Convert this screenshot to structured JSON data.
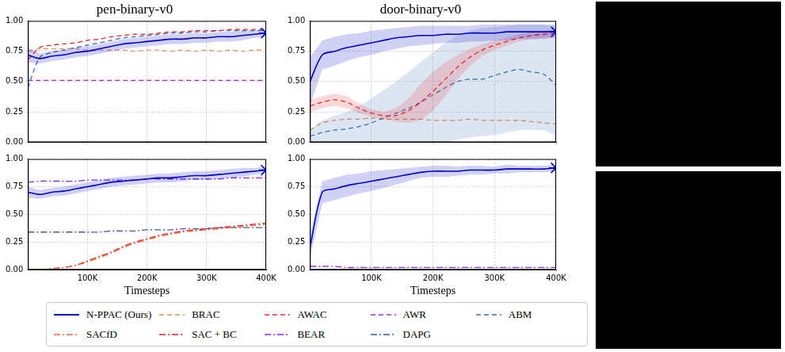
{
  "chart_data": [
    {
      "type": "line",
      "title": "pen-binary-v0",
      "grid": true,
      "legend": "bottom",
      "tick_labels": "y",
      "x": [
        0,
        20000,
        40000,
        60000,
        80000,
        100000,
        120000,
        140000,
        160000,
        180000,
        200000,
        220000,
        240000,
        260000,
        280000,
        300000,
        320000,
        340000,
        360000,
        380000,
        400000
      ],
      "xlim": [
        0,
        400000
      ],
      "xticks": [
        {
          "value": 100000,
          "label": "100K"
        },
        {
          "value": 200000,
          "label": "200K"
        },
        {
          "value": 300000,
          "label": "300K"
        },
        {
          "value": 400000,
          "label": "400K"
        }
      ],
      "ylim": [
        0,
        1
      ],
      "yticks": [
        {
          "value": 0,
          "label": "0.00"
        },
        {
          "value": 0.25,
          "label": "0.25"
        },
        {
          "value": 0.5,
          "label": "0.50"
        },
        {
          "value": 0.75,
          "label": "0.75"
        },
        {
          "value": 1,
          "label": "1.00"
        }
      ],
      "series": [
        {
          "name": "N-PPAC (Ours)",
          "color": "#0000cc",
          "line_style": "solid",
          "marker": "star",
          "values": [
            0.72,
            0.69,
            0.71,
            0.72,
            0.74,
            0.75,
            0.77,
            0.79,
            0.81,
            0.82,
            0.83,
            0.84,
            0.85,
            0.85,
            0.86,
            0.86,
            0.87,
            0.87,
            0.88,
            0.89,
            0.9
          ],
          "lower": [
            0.66,
            0.65,
            0.67,
            0.68,
            0.7,
            0.71,
            0.73,
            0.75,
            0.77,
            0.78,
            0.79,
            0.8,
            0.81,
            0.81,
            0.82,
            0.82,
            0.83,
            0.83,
            0.84,
            0.86,
            0.87
          ],
          "upper": [
            0.78,
            0.73,
            0.75,
            0.76,
            0.78,
            0.79,
            0.81,
            0.83,
            0.85,
            0.86,
            0.87,
            0.88,
            0.89,
            0.89,
            0.9,
            0.9,
            0.91,
            0.91,
            0.92,
            0.92,
            0.93
          ]
        },
        {
          "name": "BRAC",
          "color": "#e8915a",
          "line_style": "dashed",
          "values": [
            0.75,
            0.77,
            0.77,
            0.77,
            0.77,
            0.76,
            0.76,
            0.76,
            0.76,
            0.75,
            0.76,
            0.76,
            0.75,
            0.76,
            0.75,
            0.76,
            0.75,
            0.76,
            0.75,
            0.76,
            0.76
          ]
        },
        {
          "name": "AWAC",
          "color": "#e8282a",
          "line_style": "dashed",
          "values": [
            0.68,
            0.78,
            0.8,
            0.81,
            0.82,
            0.84,
            0.85,
            0.87,
            0.88,
            0.89,
            0.89,
            0.9,
            0.91,
            0.91,
            0.92,
            0.92,
            0.92,
            0.93,
            0.93,
            0.93,
            0.93
          ]
        },
        {
          "name": "AWR",
          "color": "#9b30e0",
          "line_style": "dashed",
          "values": [
            0.51,
            0.51,
            0.51,
            0.51,
            0.51,
            0.51,
            0.51,
            0.51,
            0.51,
            0.51,
            0.51,
            0.51,
            0.51,
            0.51,
            0.51,
            0.51,
            0.51,
            0.51,
            0.51,
            0.51,
            0.51
          ]
        },
        {
          "name": "ABM",
          "color": "#3b6fb6",
          "line_style": "dashed",
          "values": [
            0.45,
            0.7,
            0.74,
            0.76,
            0.78,
            0.8,
            0.82,
            0.84,
            0.86,
            0.87,
            0.88,
            0.89,
            0.9,
            0.9,
            0.91,
            0.91,
            0.92,
            0.92,
            0.92,
            0.92,
            0.92
          ]
        }
      ]
    },
    {
      "type": "line",
      "title": "door-binary-v0",
      "grid": true,
      "legend": "bottom",
      "tick_labels": "y",
      "x": [
        0,
        20000,
        40000,
        60000,
        80000,
        100000,
        120000,
        140000,
        160000,
        180000,
        200000,
        220000,
        240000,
        260000,
        280000,
        300000,
        320000,
        340000,
        360000,
        380000,
        400000
      ],
      "xlim": [
        0,
        400000
      ],
      "xticks": [
        {
          "value": 100000,
          "label": "100K"
        },
        {
          "value": 200000,
          "label": "200K"
        },
        {
          "value": 300000,
          "label": "300K"
        },
        {
          "value": 400000,
          "label": "400K"
        }
      ],
      "ylim": [
        0,
        1
      ],
      "yticks": [
        {
          "value": 0,
          "label": "0.00"
        },
        {
          "value": 0.25,
          "label": "0.25"
        },
        {
          "value": 0.5,
          "label": "0.50"
        },
        {
          "value": 0.75,
          "label": "0.75"
        },
        {
          "value": 1,
          "label": "1.00"
        }
      ],
      "series": [
        {
          "name": "N-PPAC (Ours)",
          "color": "#0000cc",
          "line_style": "solid",
          "marker": "star",
          "values": [
            0.5,
            0.72,
            0.75,
            0.78,
            0.8,
            0.82,
            0.84,
            0.86,
            0.87,
            0.88,
            0.88,
            0.89,
            0.89,
            0.9,
            0.9,
            0.9,
            0.91,
            0.91,
            0.91,
            0.91,
            0.91
          ],
          "lower": [
            0.3,
            0.6,
            0.63,
            0.67,
            0.7,
            0.72,
            0.75,
            0.77,
            0.79,
            0.8,
            0.81,
            0.82,
            0.82,
            0.83,
            0.83,
            0.84,
            0.84,
            0.85,
            0.85,
            0.85,
            0.86
          ],
          "upper": [
            0.7,
            0.84,
            0.87,
            0.89,
            0.9,
            0.92,
            0.93,
            0.94,
            0.95,
            0.96,
            0.96,
            0.96,
            0.96,
            0.96,
            0.97,
            0.97,
            0.97,
            0.97,
            0.97,
            0.97,
            0.97
          ]
        },
        {
          "name": "AWAC",
          "color": "#e8282a",
          "line_style": "dashed",
          "values": [
            0.3,
            0.33,
            0.35,
            0.33,
            0.28,
            0.24,
            0.22,
            0.22,
            0.26,
            0.33,
            0.42,
            0.52,
            0.62,
            0.7,
            0.76,
            0.8,
            0.83,
            0.86,
            0.88,
            0.89,
            0.9
          ],
          "lower": [
            0.25,
            0.28,
            0.3,
            0.28,
            0.24,
            0.21,
            0.19,
            0.17,
            0.16,
            0.18,
            0.26,
            0.38,
            0.52,
            0.63,
            0.71,
            0.76,
            0.8,
            0.83,
            0.85,
            0.86,
            0.87
          ],
          "upper": [
            0.35,
            0.38,
            0.4,
            0.38,
            0.32,
            0.27,
            0.25,
            0.28,
            0.36,
            0.48,
            0.58,
            0.66,
            0.72,
            0.77,
            0.81,
            0.84,
            0.86,
            0.89,
            0.91,
            0.92,
            0.93
          ]
        },
        {
          "name": "ABM",
          "color": "#3b6fb6",
          "line_style": "dashed",
          "values": [
            0.05,
            0.08,
            0.1,
            0.11,
            0.13,
            0.16,
            0.2,
            0.24,
            0.28,
            0.33,
            0.39,
            0.45,
            0.5,
            0.52,
            0.52,
            0.55,
            0.58,
            0.6,
            0.58,
            0.56,
            0.47
          ],
          "lower": [
            0.0,
            0.0,
            0.0,
            0.0,
            0.0,
            0.0,
            0.0,
            0.0,
            0.0,
            0.0,
            0.0,
            0.0,
            0.02,
            0.04,
            0.05,
            0.06,
            0.08,
            0.1,
            0.1,
            0.1,
            0.05
          ],
          "upper": [
            0.1,
            0.18,
            0.22,
            0.25,
            0.3,
            0.36,
            0.43,
            0.5,
            0.58,
            0.66,
            0.74,
            0.82,
            0.88,
            0.92,
            0.94,
            0.95,
            0.96,
            0.97,
            0.97,
            0.97,
            0.95
          ]
        },
        {
          "name": "BRAC",
          "color": "#e8915a",
          "line_style": "dashed",
          "values": [
            0.1,
            0.16,
            0.18,
            0.19,
            0.19,
            0.2,
            0.19,
            0.19,
            0.19,
            0.19,
            0.18,
            0.18,
            0.18,
            0.19,
            0.18,
            0.18,
            0.18,
            0.18,
            0.17,
            0.16,
            0.15
          ]
        }
      ]
    },
    {
      "type": "line",
      "xlabel": "Timesteps",
      "grid": true,
      "legend": "bottom",
      "x": [
        0,
        20000,
        40000,
        60000,
        80000,
        100000,
        120000,
        140000,
        160000,
        180000,
        200000,
        220000,
        240000,
        260000,
        280000,
        300000,
        320000,
        340000,
        360000,
        380000,
        400000
      ],
      "xlim": [
        0,
        400000
      ],
      "xticks": [
        {
          "value": 100000,
          "label": "100K"
        },
        {
          "value": 200000,
          "label": "200K"
        },
        {
          "value": 300000,
          "label": "300K"
        },
        {
          "value": 400000,
          "label": "400K"
        }
      ],
      "ylim": [
        0,
        1
      ],
      "yticks": [
        {
          "value": 0,
          "label": "0.00"
        },
        {
          "value": 0.25,
          "label": "0.25"
        },
        {
          "value": 0.5,
          "label": "0.50"
        },
        {
          "value": 0.75,
          "label": "0.75"
        },
        {
          "value": 1,
          "label": "1.00"
        }
      ],
      "series": [
        {
          "name": "N-PPAC (Ours)",
          "color": "#0000cc",
          "line_style": "solid",
          "marker": "star",
          "values": [
            0.7,
            0.68,
            0.7,
            0.71,
            0.73,
            0.75,
            0.77,
            0.79,
            0.8,
            0.81,
            0.82,
            0.83,
            0.83,
            0.84,
            0.85,
            0.85,
            0.86,
            0.87,
            0.88,
            0.89,
            0.9
          ],
          "lower": [
            0.65,
            0.64,
            0.66,
            0.67,
            0.69,
            0.71,
            0.73,
            0.75,
            0.76,
            0.77,
            0.78,
            0.79,
            0.79,
            0.8,
            0.81,
            0.81,
            0.82,
            0.83,
            0.84,
            0.86,
            0.87
          ],
          "upper": [
            0.75,
            0.72,
            0.74,
            0.75,
            0.77,
            0.79,
            0.81,
            0.83,
            0.84,
            0.85,
            0.86,
            0.87,
            0.87,
            0.88,
            0.89,
            0.89,
            0.9,
            0.91,
            0.92,
            0.92,
            0.93
          ]
        },
        {
          "name": "SACfD",
          "color": "#e8693a",
          "line_style": "dashdot",
          "values": [
            0.0,
            0.0,
            0.01,
            0.02,
            0.04,
            0.07,
            0.11,
            0.15,
            0.2,
            0.24,
            0.27,
            0.3,
            0.32,
            0.34,
            0.35,
            0.36,
            0.37,
            0.38,
            0.39,
            0.4,
            0.41
          ]
        },
        {
          "name": "SAC + BC",
          "color": "#e02020",
          "line_style": "dashdot",
          "values": [
            0.0,
            0.0,
            0.01,
            0.02,
            0.04,
            0.08,
            0.12,
            0.16,
            0.21,
            0.25,
            0.28,
            0.31,
            0.33,
            0.35,
            0.36,
            0.37,
            0.38,
            0.39,
            0.4,
            0.41,
            0.42
          ]
        },
        {
          "name": "BEAR",
          "color": "#8a2be2",
          "line_style": "dashdot",
          "values": [
            0.79,
            0.8,
            0.8,
            0.8,
            0.8,
            0.81,
            0.81,
            0.81,
            0.81,
            0.81,
            0.82,
            0.82,
            0.82,
            0.82,
            0.82,
            0.82,
            0.82,
            0.83,
            0.83,
            0.83,
            0.83
          ]
        },
        {
          "name": "DAPG",
          "color": "#3c5f9c",
          "line_style": "dashdot",
          "values": [
            0.34,
            0.34,
            0.34,
            0.34,
            0.34,
            0.34,
            0.34,
            0.35,
            0.35,
            0.35,
            0.36,
            0.36,
            0.36,
            0.37,
            0.37,
            0.37,
            0.38,
            0.38,
            0.38,
            0.38,
            0.38
          ]
        }
      ]
    },
    {
      "type": "line",
      "xlabel": "Timesteps",
      "grid": true,
      "legend": "bottom",
      "x": [
        0,
        20000,
        40000,
        60000,
        80000,
        100000,
        120000,
        140000,
        160000,
        180000,
        200000,
        220000,
        240000,
        260000,
        280000,
        300000,
        320000,
        340000,
        360000,
        380000,
        400000
      ],
      "xlim": [
        0,
        400000
      ],
      "xticks": [
        {
          "value": 100000,
          "label": "100K"
        },
        {
          "value": 200000,
          "label": "200K"
        },
        {
          "value": 300000,
          "label": "300K"
        },
        {
          "value": 400000,
          "label": "400K"
        }
      ],
      "ylim": [
        0,
        1
      ],
      "yticks": [
        {
          "value": 0,
          "label": "0.00"
        },
        {
          "value": 0.25,
          "label": "0.25"
        },
        {
          "value": 0.5,
          "label": "0.50"
        },
        {
          "value": 0.75,
          "label": "0.75"
        },
        {
          "value": 1,
          "label": "1.00"
        }
      ],
      "series": [
        {
          "name": "N-PPAC (Ours)",
          "color": "#0000cc",
          "line_style": "solid",
          "marker": "star",
          "values": [
            0.2,
            0.7,
            0.73,
            0.76,
            0.78,
            0.8,
            0.82,
            0.84,
            0.86,
            0.88,
            0.89,
            0.89,
            0.89,
            0.9,
            0.9,
            0.9,
            0.91,
            0.91,
            0.91,
            0.91,
            0.92
          ],
          "lower": [
            0.1,
            0.6,
            0.63,
            0.66,
            0.69,
            0.71,
            0.74,
            0.77,
            0.8,
            0.83,
            0.84,
            0.84,
            0.85,
            0.86,
            0.86,
            0.87,
            0.87,
            0.88,
            0.88,
            0.88,
            0.89
          ],
          "upper": [
            0.3,
            0.8,
            0.83,
            0.86,
            0.87,
            0.89,
            0.9,
            0.91,
            0.92,
            0.93,
            0.94,
            0.94,
            0.93,
            0.94,
            0.94,
            0.93,
            0.95,
            0.94,
            0.94,
            0.94,
            0.95
          ]
        },
        {
          "name": "BEAR",
          "color": "#8a2be2",
          "line_style": "dashdot",
          "values": [
            0.03,
            0.03,
            0.03,
            0.02,
            0.02,
            0.02,
            0.02,
            0.02,
            0.02,
            0.02,
            0.02,
            0.02,
            0.02,
            0.02,
            0.02,
            0.02,
            0.02,
            0.02,
            0.02,
            0.02,
            0.02
          ]
        }
      ]
    }
  ]
}
